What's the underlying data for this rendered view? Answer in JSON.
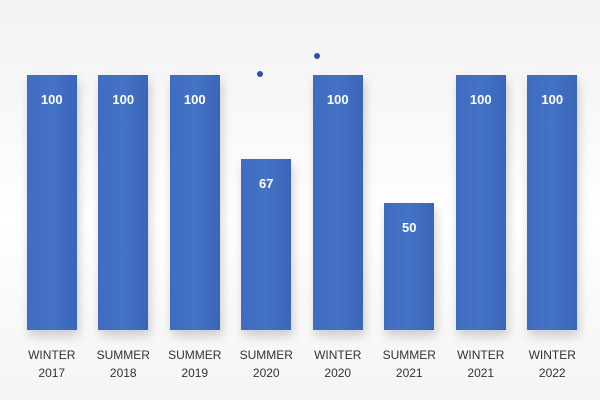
{
  "chart_data": {
    "type": "bar",
    "categories": [
      "WINTER 2017",
      "SUMMER 2018",
      "SUMMER 2019",
      "SUMMER 2020",
      "WINTER 2020",
      "SUMMER 2021",
      "WINTER 2021",
      "WINTER 2022"
    ],
    "values": [
      100,
      100,
      100,
      67,
      100,
      50,
      100,
      100
    ],
    "color": "#4472c4"
  }
}
